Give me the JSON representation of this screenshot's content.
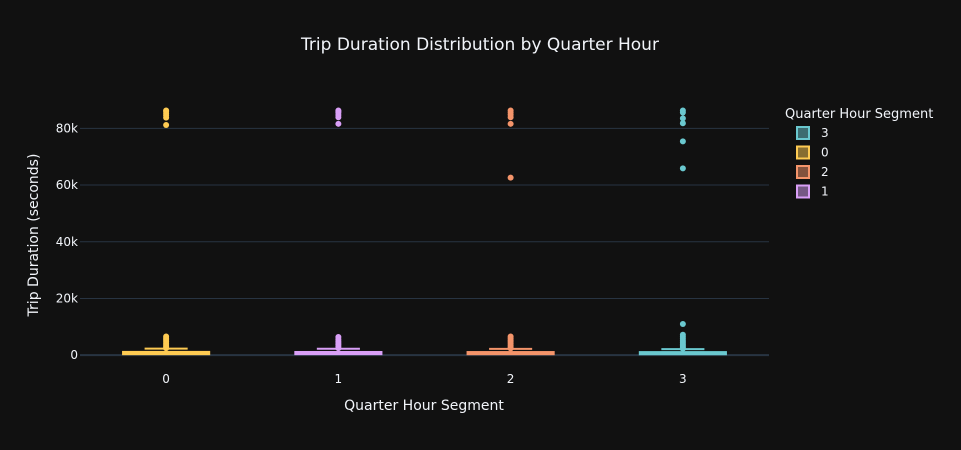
{
  "colors": {
    "background": "#111111",
    "grid": "#283442",
    "text": "#f2f5fa",
    "segment_0": "#FECB52",
    "segment_1": "#D99FF7",
    "segment_2": "#F4946A",
    "segment_3": "#6AC8CF"
  },
  "chart_data": {
    "type": "box",
    "title": "Trip Duration Distribution by Quarter Hour",
    "xlabel": "Quarter Hour Segment",
    "ylabel": "Trip Duration (seconds)",
    "ylim": [
      -1000,
      90000
    ],
    "y_ticks": [
      0,
      20000,
      40000,
      60000,
      80000
    ],
    "y_tick_labels": [
      "0",
      "20k",
      "40k",
      "60k",
      "80k"
    ],
    "categories": [
      "0",
      "1",
      "2",
      "3"
    ],
    "grid": true,
    "legend": {
      "title": "Quarter Hour Segment",
      "placement": "right",
      "entries": [
        "3",
        "0",
        "2",
        "1"
      ]
    },
    "series": [
      {
        "name": "0",
        "color": "#FECB52",
        "q1": 350,
        "median": 650,
        "q3": 1150,
        "whisker_low": 60,
        "whisker_high": 2300,
        "outliers_low": [
          2500,
          3000,
          3600,
          4200,
          4800,
          5400,
          6000,
          6600
        ],
        "outliers_high": [
          81200,
          83800,
          84600,
          85300,
          86000,
          86300
        ]
      },
      {
        "name": "1",
        "color": "#D99FF7",
        "q1": 360,
        "median": 640,
        "q3": 1120,
        "whisker_low": 60,
        "whisker_high": 2250,
        "outliers_low": [
          2500,
          3100,
          3700,
          4300,
          4900,
          5600,
          6400
        ],
        "outliers_high": [
          81600,
          83900,
          84700,
          85500,
          86000,
          86300
        ]
      },
      {
        "name": "2",
        "color": "#F4946A",
        "q1": 340,
        "median": 620,
        "q3": 1100,
        "whisker_low": 60,
        "whisker_high": 2200,
        "outliers_low": [
          2400,
          2900,
          3500,
          4100,
          4700,
          5300,
          6000,
          6600
        ],
        "outliers_high": [
          62600,
          81600,
          83900,
          84800,
          85600,
          86300
        ]
      },
      {
        "name": "3",
        "color": "#6AC8CF",
        "q1": 330,
        "median": 600,
        "q3": 1080,
        "whisker_low": 60,
        "whisker_high": 2150,
        "outliers_low": [
          2300,
          2800,
          3300,
          3900,
          4500,
          5100,
          5800,
          6500,
          7200,
          11000
        ],
        "outliers_high": [
          65900,
          75400,
          81800,
          83500,
          85600,
          86300
        ]
      }
    ]
  }
}
